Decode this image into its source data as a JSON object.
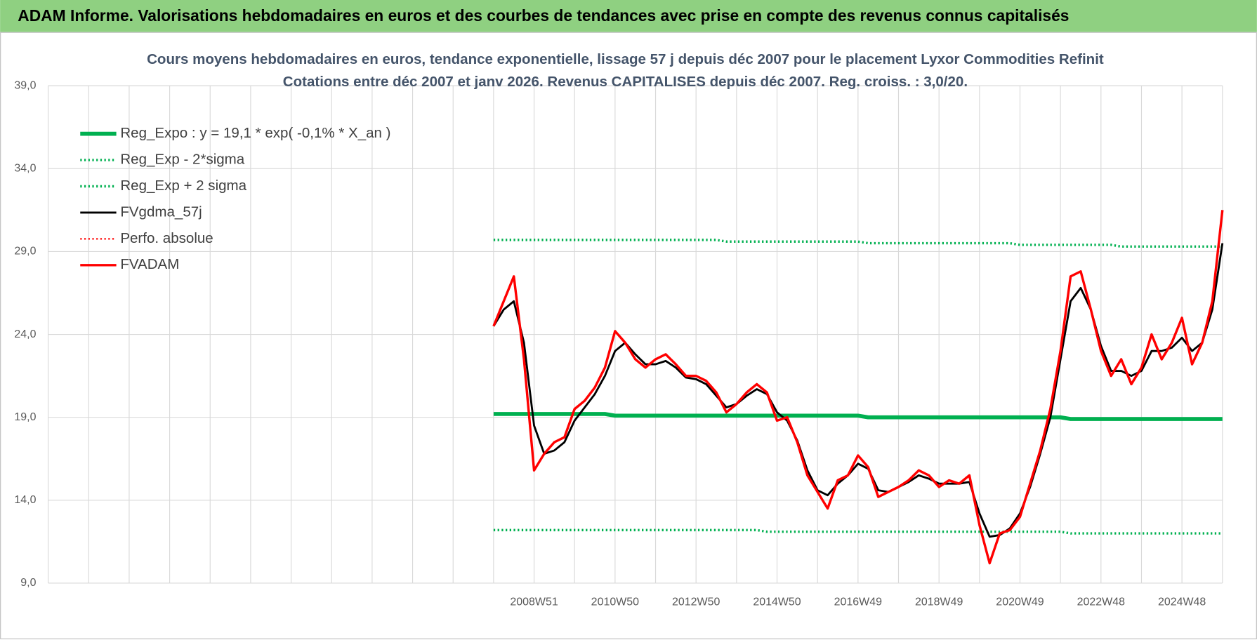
{
  "header": {
    "title": "ADAM Informe. Valorisations hebdomadaires en euros et des courbes de tendances avec prise en compte des revenus connus capitalisés"
  },
  "chart_data": {
    "type": "line",
    "title": "Cours moyens hebdomadaires en euros, tendance exponentielle, lissage 57 j depuis déc 2007 pour le placement Lyxor  Commodities Refinit",
    "subtitle": "Cotations entre déc 2007 et janv 2026. Revenus CAPITALISES depuis déc 2007. Reg. croiss. : 3,0/20.",
    "categories": [
      null,
      null,
      null,
      null,
      null,
      null,
      null,
      null,
      null,
      null,
      null,
      null,
      null,
      null,
      null,
      null,
      null,
      null,
      null,
      null,
      null,
      null,
      null,
      null,
      null,
      null,
      null,
      null,
      null,
      null,
      null,
      null,
      null,
      null,
      null,
      null,
      null,
      null,
      null,
      null,
      null,
      null,
      null,
      null,
      null,
      null,
      null,
      null,
      "2008W51",
      null,
      null,
      null,
      null,
      null,
      null,
      null,
      "2010W50",
      null,
      null,
      null,
      null,
      null,
      null,
      null,
      "2012W50",
      null,
      null,
      null,
      null,
      null,
      null,
      null,
      "2014W50",
      null,
      null,
      null,
      null,
      null,
      null,
      null,
      "2016W49",
      null,
      null,
      null,
      null,
      null,
      null,
      null,
      "2018W49",
      null,
      null,
      null,
      null,
      null,
      null,
      null,
      "2020W49",
      null,
      null,
      null,
      null,
      null,
      null,
      null,
      "2022W48",
      null,
      null,
      null,
      null,
      null,
      null,
      null,
      "2024W48",
      null,
      null,
      null,
      null
    ],
    "ylim": [
      9,
      39
    ],
    "yticks": [
      {
        "value": 9,
        "label": "9,0"
      },
      {
        "value": 14,
        "label": "14,0"
      },
      {
        "value": 19,
        "label": "19,0"
      },
      {
        "value": 24,
        "label": "24,0"
      },
      {
        "value": 29,
        "label": "29,0"
      },
      {
        "value": 34,
        "label": "34,0"
      },
      {
        "value": 39,
        "label": "39,0"
      }
    ],
    "grid": true,
    "legend": "top-left",
    "series": [
      {
        "name": "Reg_Expo : y = 19,1 * exp( -0,1% *  X_an )",
        "color": "#00b050",
        "line_style": "solid",
        "values": [
          null,
          null,
          null,
          null,
          null,
          null,
          null,
          null,
          null,
          null,
          null,
          null,
          null,
          null,
          null,
          null,
          null,
          null,
          null,
          null,
          null,
          null,
          null,
          null,
          null,
          null,
          null,
          null,
          null,
          null,
          null,
          null,
          null,
          null,
          null,
          null,
          null,
          null,
          null,
          null,
          null,
          null,
          null,
          null,
          19.2,
          19.2,
          19.2,
          19.2,
          19.2,
          19.2,
          19.2,
          19.2,
          19.2,
          19.2,
          19.2,
          19.2,
          19.1,
          19.1,
          19.1,
          19.1,
          19.1,
          19.1,
          19.1,
          19.1,
          19.1,
          19.1,
          19.1,
          19.1,
          19.1,
          19.1,
          19.1,
          19.1,
          19.1,
          19.1,
          19.1,
          19.1,
          19.1,
          19.1,
          19.1,
          19.1,
          19.1,
          19.0,
          19.0,
          19.0,
          19.0,
          19.0,
          19.0,
          19.0,
          19.0,
          19.0,
          19.0,
          19.0,
          19.0,
          19.0,
          19.0,
          19.0,
          19.0,
          19.0,
          19.0,
          19.0,
          19.0,
          18.9,
          18.9,
          18.9,
          18.9,
          18.9,
          18.9,
          18.9,
          18.9,
          18.9,
          18.9,
          18.9,
          18.9,
          18.9,
          18.9,
          18.9,
          18.9
        ]
      },
      {
        "name": "Reg_Exp - 2*sigma",
        "color": "#00b050",
        "line_style": "dotted",
        "values": [
          null,
          null,
          null,
          null,
          null,
          null,
          null,
          null,
          null,
          null,
          null,
          null,
          null,
          null,
          null,
          null,
          null,
          null,
          null,
          null,
          null,
          null,
          null,
          null,
          null,
          null,
          null,
          null,
          null,
          null,
          null,
          null,
          null,
          null,
          null,
          null,
          null,
          null,
          null,
          null,
          null,
          null,
          null,
          null,
          12.2,
          12.2,
          12.2,
          12.2,
          12.2,
          12.2,
          12.2,
          12.2,
          12.2,
          12.2,
          12.2,
          12.2,
          12.2,
          12.2,
          12.2,
          12.2,
          12.2,
          12.2,
          12.2,
          12.2,
          12.2,
          12.2,
          12.2,
          12.2,
          12.2,
          12.2,
          12.2,
          12.1,
          12.1,
          12.1,
          12.1,
          12.1,
          12.1,
          12.1,
          12.1,
          12.1,
          12.1,
          12.1,
          12.1,
          12.1,
          12.1,
          12.1,
          12.1,
          12.1,
          12.1,
          12.1,
          12.1,
          12.1,
          12.1,
          12.1,
          12.1,
          12.1,
          12.1,
          12.1,
          12.1,
          12.1,
          12.1,
          12.0,
          12.0,
          12.0,
          12.0,
          12.0,
          12.0,
          12.0,
          12.0,
          12.0,
          12.0,
          12.0,
          12.0,
          12.0,
          12.0,
          12.0,
          12.0
        ]
      },
      {
        "name": "Reg_Exp + 2 sigma",
        "color": "#00b050",
        "line_style": "dotted",
        "values": [
          null,
          null,
          null,
          null,
          null,
          null,
          null,
          null,
          null,
          null,
          null,
          null,
          null,
          null,
          null,
          null,
          null,
          null,
          null,
          null,
          null,
          null,
          null,
          null,
          null,
          null,
          null,
          null,
          null,
          null,
          null,
          null,
          null,
          null,
          null,
          null,
          null,
          null,
          null,
          null,
          null,
          null,
          null,
          null,
          29.7,
          29.7,
          29.7,
          29.7,
          29.7,
          29.7,
          29.7,
          29.7,
          29.7,
          29.7,
          29.7,
          29.7,
          29.7,
          29.7,
          29.7,
          29.7,
          29.7,
          29.7,
          29.7,
          29.7,
          29.7,
          29.7,
          29.7,
          29.6,
          29.6,
          29.6,
          29.6,
          29.6,
          29.6,
          29.6,
          29.6,
          29.6,
          29.6,
          29.6,
          29.6,
          29.6,
          29.6,
          29.5,
          29.5,
          29.5,
          29.5,
          29.5,
          29.5,
          29.5,
          29.5,
          29.5,
          29.5,
          29.5,
          29.5,
          29.5,
          29.5,
          29.5,
          29.4,
          29.4,
          29.4,
          29.4,
          29.4,
          29.4,
          29.4,
          29.4,
          29.4,
          29.4,
          29.3,
          29.3,
          29.3,
          29.3,
          29.3,
          29.3,
          29.3,
          29.3,
          29.3,
          29.3,
          29.3
        ]
      },
      {
        "name": "FVgdma_57j",
        "color": "#000000",
        "line_style": "solid",
        "values": [
          null,
          null,
          null,
          null,
          null,
          null,
          null,
          null,
          null,
          null,
          null,
          null,
          null,
          null,
          null,
          null,
          null,
          null,
          null,
          null,
          null,
          null,
          null,
          null,
          null,
          null,
          null,
          null,
          null,
          null,
          null,
          null,
          null,
          null,
          null,
          null,
          null,
          null,
          null,
          null,
          null,
          null,
          null,
          null,
          24.5,
          25.5,
          26.0,
          23.5,
          18.5,
          16.8,
          17.0,
          17.5,
          18.8,
          19.6,
          20.4,
          21.5,
          23.0,
          23.5,
          22.8,
          22.2,
          22.2,
          22.4,
          22.0,
          21.4,
          21.3,
          21.0,
          20.3,
          19.6,
          19.8,
          20.3,
          20.7,
          20.4,
          19.3,
          18.8,
          17.6,
          15.8,
          14.6,
          14.3,
          15.0,
          15.5,
          16.2,
          15.9,
          14.6,
          14.5,
          14.8,
          15.1,
          15.5,
          15.3,
          15.0,
          15.0,
          15.0,
          15.1,
          13.2,
          11.8,
          11.9,
          12.3,
          13.2,
          14.8,
          16.8,
          19.0,
          22.5,
          26.0,
          26.8,
          25.5,
          23.3,
          21.8,
          21.8,
          21.5,
          21.8,
          23.0,
          23.0,
          23.2,
          23.8,
          23.0,
          23.5,
          25.5,
          29.5
        ]
      },
      {
        "name": "Perfo. absolue",
        "color": "#ff0000",
        "line_style": "dotted",
        "values": [
          null,
          null,
          null,
          null,
          null,
          null,
          null,
          null,
          null,
          null,
          null,
          null,
          null,
          null,
          null,
          null,
          null,
          null,
          null,
          null,
          null,
          null,
          null,
          null,
          null,
          null,
          null,
          null,
          null,
          null,
          null,
          null,
          null,
          null,
          null,
          null,
          null,
          null,
          null,
          null,
          null,
          null,
          null,
          null,
          null,
          null,
          null,
          null,
          null,
          null,
          null,
          null,
          null,
          null,
          null,
          null,
          null,
          null,
          null,
          null,
          null,
          null,
          null,
          null,
          null,
          null,
          null,
          null,
          null,
          null,
          null,
          null,
          null,
          null,
          null,
          null,
          null,
          null,
          null,
          null,
          null,
          null,
          null,
          null,
          null,
          null,
          null,
          null,
          null,
          null,
          null,
          null,
          null,
          null,
          null,
          null,
          null,
          null,
          null,
          null,
          null,
          null,
          null,
          null,
          null,
          null,
          null,
          null,
          null,
          null,
          null,
          null,
          null,
          null,
          null,
          null,
          null
        ]
      },
      {
        "name": "FVADAM",
        "color": "#ff0000",
        "line_style": "solid",
        "values": [
          null,
          null,
          null,
          null,
          null,
          null,
          null,
          null,
          null,
          null,
          null,
          null,
          null,
          null,
          null,
          null,
          null,
          null,
          null,
          null,
          null,
          null,
          null,
          null,
          null,
          null,
          null,
          null,
          null,
          null,
          null,
          null,
          null,
          null,
          null,
          null,
          null,
          null,
          null,
          null,
          null,
          null,
          null,
          null,
          24.5,
          26.0,
          27.5,
          22.5,
          15.8,
          16.8,
          17.5,
          17.8,
          19.5,
          20.0,
          20.8,
          22.0,
          24.2,
          23.5,
          22.5,
          22.0,
          22.5,
          22.8,
          22.2,
          21.5,
          21.5,
          21.2,
          20.5,
          19.3,
          19.8,
          20.5,
          21.0,
          20.5,
          18.8,
          19.0,
          17.5,
          15.5,
          14.5,
          13.5,
          15.2,
          15.5,
          16.7,
          16.0,
          14.2,
          14.5,
          14.8,
          15.2,
          15.8,
          15.5,
          14.8,
          15.2,
          15.0,
          15.5,
          12.5,
          10.2,
          12.0,
          12.2,
          13.0,
          15.0,
          17.0,
          19.5,
          23.0,
          27.5,
          27.8,
          25.5,
          23.0,
          21.5,
          22.5,
          21.0,
          22.0,
          24.0,
          22.5,
          23.5,
          25.0,
          22.2,
          23.5,
          26.0,
          31.5
        ]
      }
    ]
  }
}
